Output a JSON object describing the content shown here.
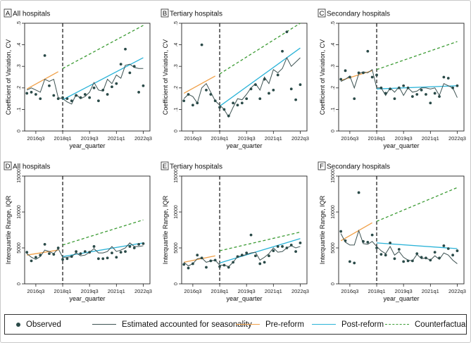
{
  "colors": {
    "observed": "#2a4a48",
    "estimated": "#3d5252",
    "pre_reform": "#f0a048",
    "post_reform": "#2ab3d8",
    "counterfactual": "#3c9b34"
  },
  "legend": {
    "observed": "Observed",
    "estimated": "Estimated accounted for seasonality",
    "pre_reform": "Pre-reform",
    "post_reform": "Post-reform",
    "counterfactual": "Counterfactual"
  },
  "chart_data": [
    {
      "type": "line",
      "letter": "A",
      "title": "All hospitals",
      "xlabel": "year_quarter",
      "ylabel": "Coefficient of Variation, CV",
      "x_ticks": [
        "2016q3",
        "2018q1",
        "2019q3",
        "2021q1",
        "2022q3"
      ],
      "x_tick_positions": [
        2,
        8,
        14,
        20,
        26
      ],
      "y_ticks": [
        "0",
        ".1",
        ".2",
        ".3",
        ".4",
        ".5"
      ],
      "y_tick_values": [
        0,
        0.1,
        0.2,
        0.3,
        0.4,
        0.5
      ],
      "ylim": [
        0,
        0.5
      ],
      "xlim": [
        -0.5,
        27.5
      ],
      "reform_x": 8,
      "observed": [
        0.175,
        0.18,
        0.17,
        0.15,
        0.35,
        0.21,
        0.165,
        0.15,
        0.155,
        0.15,
        0.14,
        0.165,
        0.155,
        0.17,
        0.155,
        0.2,
        0.14,
        0.19,
        0.17,
        0.205,
        0.22,
        0.31,
        0.38,
        0.27,
        0.3,
        0.18,
        0.21
      ],
      "estimated": [
        0.19,
        0.2,
        0.19,
        0.18,
        0.24,
        0.23,
        0.24,
        0.155,
        0.15,
        0.135,
        0.125,
        0.17,
        0.15,
        0.16,
        0.18,
        0.225,
        0.19,
        0.185,
        0.24,
        0.22,
        0.26,
        0.245,
        0.305,
        0.31,
        0.295,
        0.29,
        0.29
      ],
      "pre_reform": [
        0.195,
        0.275
      ],
      "post_reform": [
        0.145,
        0.34
      ],
      "counterfactual": [
        0.29,
        0.49
      ]
    },
    {
      "type": "line",
      "letter": "B",
      "title": "Tertiary hospitals",
      "xlabel": "year_quarter",
      "ylabel": "Coefficient of Variation, CV",
      "x_ticks": [
        "2016q3",
        "2018q1",
        "2019q3",
        "2021q1",
        "2022q3"
      ],
      "x_tick_positions": [
        2,
        8,
        14,
        20,
        26
      ],
      "y_ticks": [
        "0",
        ".1",
        ".2",
        ".3",
        ".4",
        ".5"
      ],
      "y_tick_values": [
        0,
        0.1,
        0.2,
        0.3,
        0.4,
        0.5
      ],
      "ylim": [
        0,
        0.5
      ],
      "xlim": [
        -0.5,
        27.5
      ],
      "reform_x": 8,
      "observed": [
        0.14,
        0.17,
        0.12,
        0.13,
        0.4,
        0.19,
        0.17,
        0.14,
        0.11,
        0.1,
        0.07,
        0.13,
        0.12,
        0.13,
        0.15,
        0.195,
        0.215,
        0.15,
        0.24,
        0.175,
        0.19,
        0.26,
        0.37,
        0.46,
        0.195,
        0.145,
        0.215
      ],
      "estimated": [
        0.15,
        0.17,
        0.16,
        0.13,
        0.2,
        0.22,
        0.18,
        0.14,
        0.12,
        0.1,
        0.065,
        0.11,
        0.15,
        0.145,
        0.17,
        0.2,
        0.22,
        0.19,
        0.25,
        0.22,
        0.285,
        0.27,
        0.29,
        0.34,
        0.3,
        0.32,
        0.34
      ],
      "pre_reform": [
        0.175,
        0.255
      ],
      "post_reform": [
        0.115,
        0.385
      ],
      "counterfactual": [
        0.265,
        0.5
      ]
    },
    {
      "type": "line",
      "letter": "C",
      "title": "Secondary hospitals",
      "xlabel": "year_quarter",
      "ylabel": "Coefficient of Variation, CV",
      "x_ticks": [
        "2016q3",
        "2018q1",
        "2019q3",
        "2021q1",
        "2022q3"
      ],
      "x_tick_positions": [
        2,
        8,
        14,
        20,
        26
      ],
      "y_ticks": [
        "0",
        ".1",
        ".2",
        ".3",
        ".4",
        ".5"
      ],
      "y_tick_values": [
        0,
        0.1,
        0.2,
        0.3,
        0.4,
        0.5
      ],
      "ylim": [
        0,
        0.5
      ],
      "xlim": [
        -0.5,
        27.5
      ],
      "reform_x": 8,
      "observed": [
        0.24,
        0.28,
        0.25,
        0.15,
        0.27,
        0.27,
        0.37,
        0.25,
        0.26,
        0.2,
        0.175,
        0.195,
        0.15,
        0.2,
        0.21,
        0.2,
        0.16,
        0.17,
        0.19,
        0.17,
        0.13,
        0.175,
        0.16,
        0.25,
        0.245,
        0.2,
        0.21
      ],
      "estimated": [
        0.23,
        0.24,
        0.255,
        0.2,
        0.265,
        0.275,
        0.27,
        0.285,
        0.2,
        0.2,
        0.165,
        0.2,
        0.18,
        0.205,
        0.165,
        0.2,
        0.18,
        0.185,
        0.2,
        0.2,
        0.195,
        0.2,
        0.165,
        0.22,
        0.21,
        0.2,
        0.155
      ],
      "pre_reform": [
        0.235,
        0.28
      ],
      "post_reform": [
        0.195,
        0.21
      ],
      "counterfactual": [
        0.285,
        0.415
      ]
    },
    {
      "type": "line",
      "letter": "D",
      "title": "All hospitals",
      "xlabel": "year_quarter",
      "ylabel": "Interquartile Range, IQR",
      "x_ticks": [
        "2016q3",
        "2018q1",
        "2019q3",
        "2021q1",
        "2022q3"
      ],
      "x_tick_positions": [
        2,
        8,
        14,
        20,
        26
      ],
      "y_ticks": [
        "0",
        "5000",
        "10000",
        "15000"
      ],
      "y_tick_values": [
        0,
        5000,
        10000,
        15000
      ],
      "ylim": [
        0,
        15000
      ],
      "xlim": [
        -0.5,
        27.5
      ],
      "reform_x": 8,
      "observed": [
        4400,
        3200,
        3700,
        4000,
        5500,
        4200,
        4100,
        5000,
        3400,
        3500,
        3800,
        4500,
        4200,
        4500,
        4400,
        5200,
        3500,
        3500,
        3600,
        4300,
        3700,
        4400,
        4500,
        5200,
        5000,
        5500,
        5600
      ],
      "estimated": [
        4200,
        3700,
        3400,
        3800,
        4700,
        4500,
        4200,
        4900,
        3700,
        3700,
        3800,
        4300,
        3900,
        4000,
        4400,
        4900,
        4300,
        4300,
        4500,
        5200,
        4500,
        4700,
        5000,
        5700,
        5200,
        5200,
        5300
      ],
      "pre_reform": [
        4000,
        4700
      ],
      "post_reform": [
        3800,
        5700
      ],
      "counterfactual": [
        5400,
        8900
      ]
    },
    {
      "type": "line",
      "letter": "E",
      "title": "Tertiary hospitals",
      "xlabel": "year_quarter",
      "ylabel": "Interquartile Range, IQR",
      "x_ticks": [
        "2016q3",
        "2018q1",
        "2019q3",
        "2021q1",
        "2022q3"
      ],
      "x_tick_positions": [
        2,
        8,
        14,
        20,
        26
      ],
      "y_ticks": [
        "0",
        "5000",
        "10000",
        "15000"
      ],
      "y_tick_values": [
        0,
        5000,
        10000,
        15000
      ],
      "ylim": [
        0,
        15000
      ],
      "xlim": [
        -0.5,
        27.5
      ],
      "reform_x": 8,
      "observed": [
        2700,
        2200,
        2800,
        4000,
        3600,
        2300,
        3200,
        3300,
        2400,
        2600,
        2300,
        3000,
        3800,
        4000,
        4300,
        6800,
        3900,
        2800,
        3000,
        3900,
        4600,
        5200,
        5200,
        5000,
        5400,
        4500,
        5700
      ],
      "estimated": [
        3000,
        2500,
        2800,
        3500,
        3600,
        3000,
        3200,
        3300,
        2600,
        2600,
        2400,
        3000,
        3800,
        3900,
        4100,
        4300,
        4400,
        3300,
        3700,
        4200,
        5000,
        4400,
        4500,
        5000,
        5300,
        5000,
        5200
      ],
      "pre_reform": [
        3000,
        3900
      ],
      "post_reform": [
        2900,
        6300
      ],
      "counterfactual": [
        4600,
        7200
      ]
    },
    {
      "type": "line",
      "letter": "F",
      "title": "Secondary hospitals",
      "xlabel": "year_quarter",
      "ylabel": "Interquartile Range, IQR",
      "x_ticks": [
        "2016q3",
        "2018q1",
        "2019q3",
        "2021q1",
        "2022q3"
      ],
      "x_tick_positions": [
        2,
        8,
        14,
        20,
        26
      ],
      "y_ticks": [
        "0",
        "5000",
        "10000",
        "15000"
      ],
      "y_tick_values": [
        0,
        5000,
        10000,
        15000
      ],
      "ylim": [
        0,
        15000
      ],
      "xlim": [
        -0.5,
        27.5
      ],
      "reform_x": 8,
      "observed": [
        7300,
        6000,
        3100,
        2900,
        12700,
        5900,
        5800,
        6800,
        5000,
        4100,
        4000,
        5700,
        3500,
        4800,
        3100,
        3200,
        3200,
        4200,
        3700,
        3600,
        3300,
        4400,
        3600,
        5300,
        4900,
        4000,
        4600
      ],
      "estimated": [
        7000,
        5800,
        5400,
        5400,
        7400,
        5600,
        5500,
        5900,
        5200,
        4600,
        4200,
        5200,
        4000,
        4500,
        3700,
        3300,
        3200,
        4100,
        3500,
        3600,
        3300,
        3900,
        3400,
        4300,
        4000,
        3300,
        2800
      ],
      "pre_reform": [
        6000,
        8500
      ],
      "post_reform": [
        5700,
        4900
      ],
      "counterfactual": [
        8700,
        13400
      ]
    }
  ]
}
